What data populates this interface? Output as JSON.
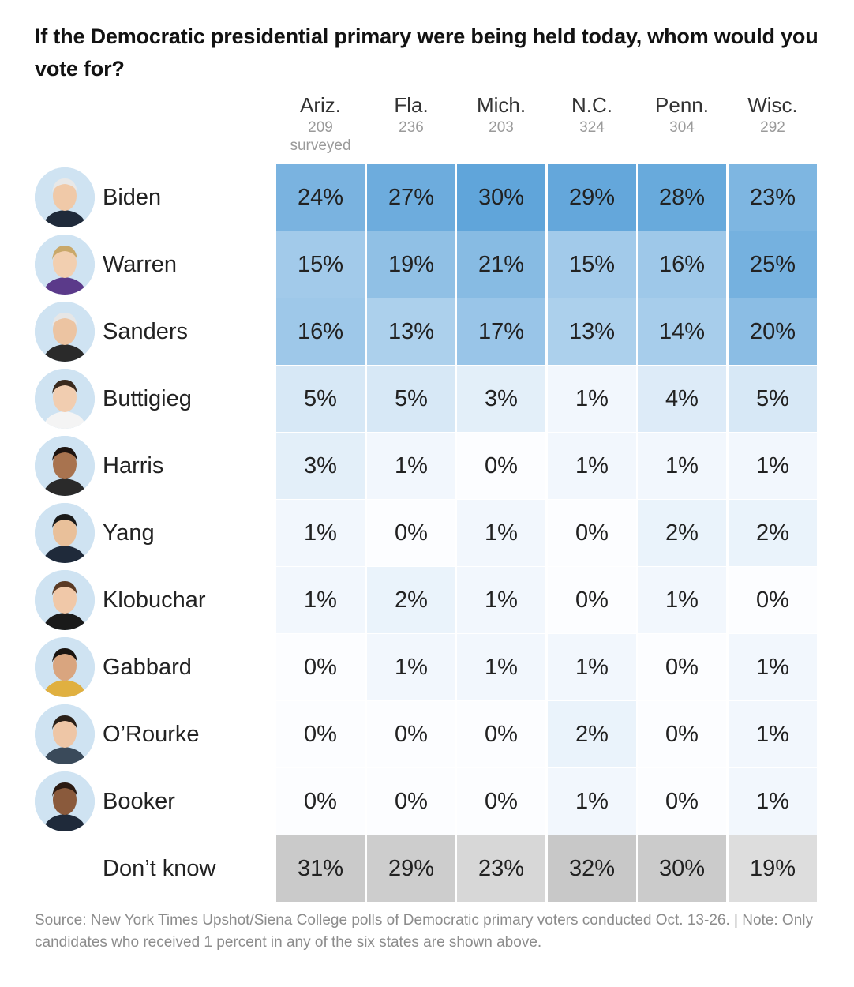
{
  "title": "If the Democratic presidential primary were being held today, whom would you vote for?",
  "surveyed_label": "surveyed",
  "chart_data": {
    "type": "table",
    "title": "If the Democratic presidential primary were being held today, whom would you vote for?",
    "columns": [
      {
        "name": "Ariz.",
        "n": "209"
      },
      {
        "name": "Fla.",
        "n": "236"
      },
      {
        "name": "Mich.",
        "n": "203"
      },
      {
        "name": "N.C.",
        "n": "324"
      },
      {
        "name": "Penn.",
        "n": "304"
      },
      {
        "name": "Wisc.",
        "n": "292"
      }
    ],
    "rows": [
      {
        "name": "Biden",
        "values": [
          24,
          27,
          30,
          29,
          28,
          23
        ],
        "labels": [
          "24%",
          "27%",
          "30%",
          "29%",
          "28%",
          "23%"
        ]
      },
      {
        "name": "Warren",
        "values": [
          15,
          19,
          21,
          15,
          16,
          25
        ],
        "labels": [
          "15%",
          "19%",
          "21%",
          "15%",
          "16%",
          "25%"
        ]
      },
      {
        "name": "Sanders",
        "values": [
          16,
          13,
          17,
          13,
          14,
          20
        ],
        "labels": [
          "16%",
          "13%",
          "17%",
          "13%",
          "14%",
          "20%"
        ]
      },
      {
        "name": "Buttigieg",
        "values": [
          5,
          5,
          3,
          1,
          4,
          5
        ],
        "labels": [
          "5%",
          "5%",
          "3%",
          "1%",
          "4%",
          "5%"
        ]
      },
      {
        "name": "Harris",
        "values": [
          3,
          1,
          0,
          1,
          1,
          1
        ],
        "labels": [
          "3%",
          "1%",
          "0%",
          "1%",
          "1%",
          "1%"
        ]
      },
      {
        "name": "Yang",
        "values": [
          1,
          0,
          1,
          0,
          2,
          2
        ],
        "labels": [
          "1%",
          "0%",
          "1%",
          "0%",
          "2%",
          "2%"
        ]
      },
      {
        "name": "Klobuchar",
        "values": [
          1,
          2,
          1,
          0,
          1,
          0
        ],
        "labels": [
          "1%",
          "2%",
          "1%",
          "0%",
          "1%",
          "0%"
        ]
      },
      {
        "name": "Gabbard",
        "values": [
          0,
          1,
          1,
          1,
          0,
          1
        ],
        "labels": [
          "0%",
          "1%",
          "1%",
          "1%",
          "0%",
          "1%"
        ]
      },
      {
        "name": "O’Rourke",
        "values": [
          0,
          0,
          0,
          2,
          0,
          1
        ],
        "labels": [
          "0%",
          "0%",
          "0%",
          "2%",
          "0%",
          "1%"
        ]
      },
      {
        "name": "Booker",
        "values": [
          0,
          0,
          0,
          1,
          0,
          1
        ],
        "labels": [
          "0%",
          "0%",
          "0%",
          "1%",
          "0%",
          "1%"
        ]
      }
    ],
    "dont_know": {
      "name": "Don’t know",
      "values": [
        31,
        29,
        23,
        32,
        30,
        19
      ],
      "labels": [
        "31%",
        "29%",
        "23%",
        "32%",
        "30%",
        "19%"
      ]
    },
    "color_scale": "blue",
    "dont_know_color_scale": "gray"
  },
  "source_text": "Source: New York Times Upshot/Siena College polls of Democratic primary voters conducted Oct. 13-26. | Note: Only candidates who received 1 percent in any of the six states are shown above."
}
